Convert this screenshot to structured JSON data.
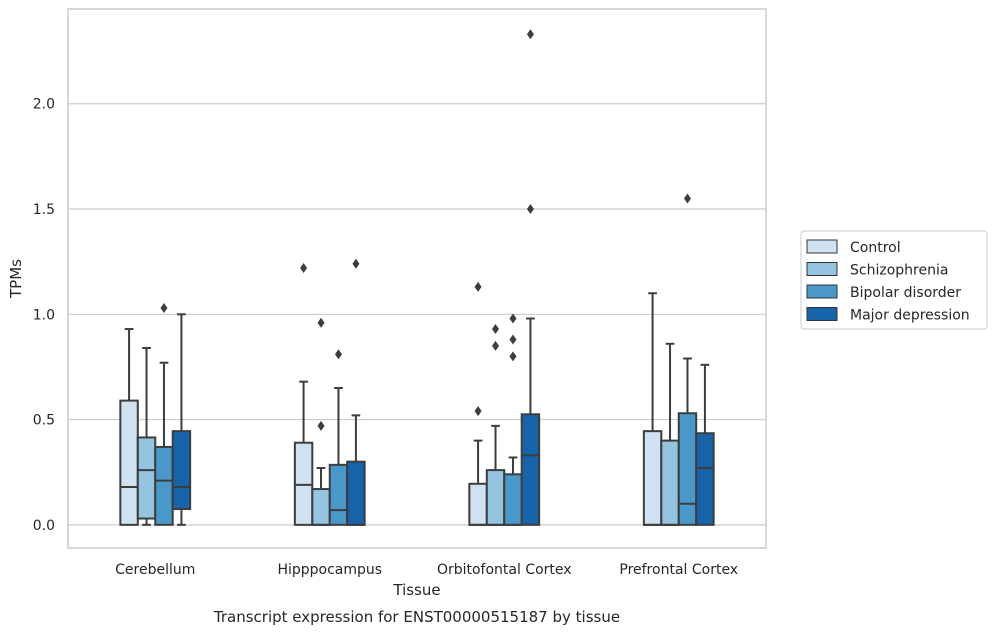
{
  "chart_data": {
    "type": "boxplot",
    "title": "",
    "caption": "Transcript expression for ENST00000515187 by tissue",
    "xlabel": "Tissue",
    "ylabel": "TPMs",
    "ylim": [
      -0.11,
      2.45
    ],
    "yticks": [
      0.0,
      0.5,
      1.0,
      1.5,
      2.0
    ],
    "ytick_labels": [
      "0.0",
      "0.5",
      "1.0",
      "1.5",
      "2.0"
    ],
    "grid": "horizontal",
    "legend_position": "right",
    "categories": [
      "Cerebellum",
      "Hipppocampus",
      "Orbitofontal Cortex",
      "Prefrontal Cortex"
    ],
    "series": [
      {
        "name": "Control",
        "color": "#d0e1f2",
        "boxes": [
          {
            "q1": 0.0,
            "median": 0.18,
            "q3": 0.59,
            "whisker_low": 0.0,
            "whisker_high": 0.93,
            "outliers": []
          },
          {
            "q1": 0.0,
            "median": 0.19,
            "q3": 0.39,
            "whisker_low": 0.0,
            "whisker_high": 0.68,
            "outliers": [
              1.22
            ]
          },
          {
            "q1": 0.0,
            "median": 0.0,
            "q3": 0.195,
            "whisker_low": 0.0,
            "whisker_high": 0.4,
            "outliers": [
              0.54,
              1.13
            ]
          },
          {
            "q1": 0.0,
            "median": 0.0,
            "q3": 0.445,
            "whisker_low": 0.0,
            "whisker_high": 1.1,
            "outliers": []
          }
        ]
      },
      {
        "name": "Schizophrenia",
        "color": "#94c4df",
        "boxes": [
          {
            "q1": 0.03,
            "median": 0.26,
            "q3": 0.415,
            "whisker_low": 0.0,
            "whisker_high": 0.84,
            "outliers": []
          },
          {
            "q1": 0.0,
            "median": 0.0,
            "q3": 0.17,
            "whisker_low": 0.0,
            "whisker_high": 0.27,
            "outliers": [
              0.47,
              0.96
            ]
          },
          {
            "q1": 0.0,
            "median": 0.0,
            "q3": 0.26,
            "whisker_low": 0.0,
            "whisker_high": 0.47,
            "outliers": [
              0.85,
              0.93
            ]
          },
          {
            "q1": 0.0,
            "median": 0.0,
            "q3": 0.4,
            "whisker_low": 0.0,
            "whisker_high": 0.86,
            "outliers": []
          }
        ]
      },
      {
        "name": "Bipolar disorder",
        "color": "#4a98c9",
        "boxes": [
          {
            "q1": 0.0,
            "median": 0.21,
            "q3": 0.37,
            "whisker_low": 0.0,
            "whisker_high": 0.77,
            "outliers": [
              1.03
            ]
          },
          {
            "q1": 0.0,
            "median": 0.07,
            "q3": 0.285,
            "whisker_low": 0.0,
            "whisker_high": 0.65,
            "outliers": [
              0.81
            ]
          },
          {
            "q1": 0.0,
            "median": 0.0,
            "q3": 0.24,
            "whisker_low": 0.0,
            "whisker_high": 0.32,
            "outliers": [
              0.8,
              0.88,
              0.98
            ]
          },
          {
            "q1": 0.0,
            "median": 0.1,
            "q3": 0.53,
            "whisker_low": 0.0,
            "whisker_high": 0.79,
            "outliers": [
              1.55
            ]
          }
        ]
      },
      {
        "name": "Major depression",
        "color": "#1764ab",
        "boxes": [
          {
            "q1": 0.075,
            "median": 0.18,
            "q3": 0.445,
            "whisker_low": 0.0,
            "whisker_high": 1.0,
            "outliers": []
          },
          {
            "q1": 0.0,
            "median": 0.0,
            "q3": 0.3,
            "whisker_low": 0.0,
            "whisker_high": 0.52,
            "outliers": [
              1.24
            ]
          },
          {
            "q1": 0.0,
            "median": 0.33,
            "q3": 0.525,
            "whisker_low": 0.0,
            "whisker_high": 0.98,
            "outliers": [
              1.5,
              2.33
            ]
          },
          {
            "q1": 0.0,
            "median": 0.27,
            "q3": 0.435,
            "whisker_low": 0.0,
            "whisker_high": 0.76,
            "outliers": []
          }
        ]
      }
    ]
  }
}
